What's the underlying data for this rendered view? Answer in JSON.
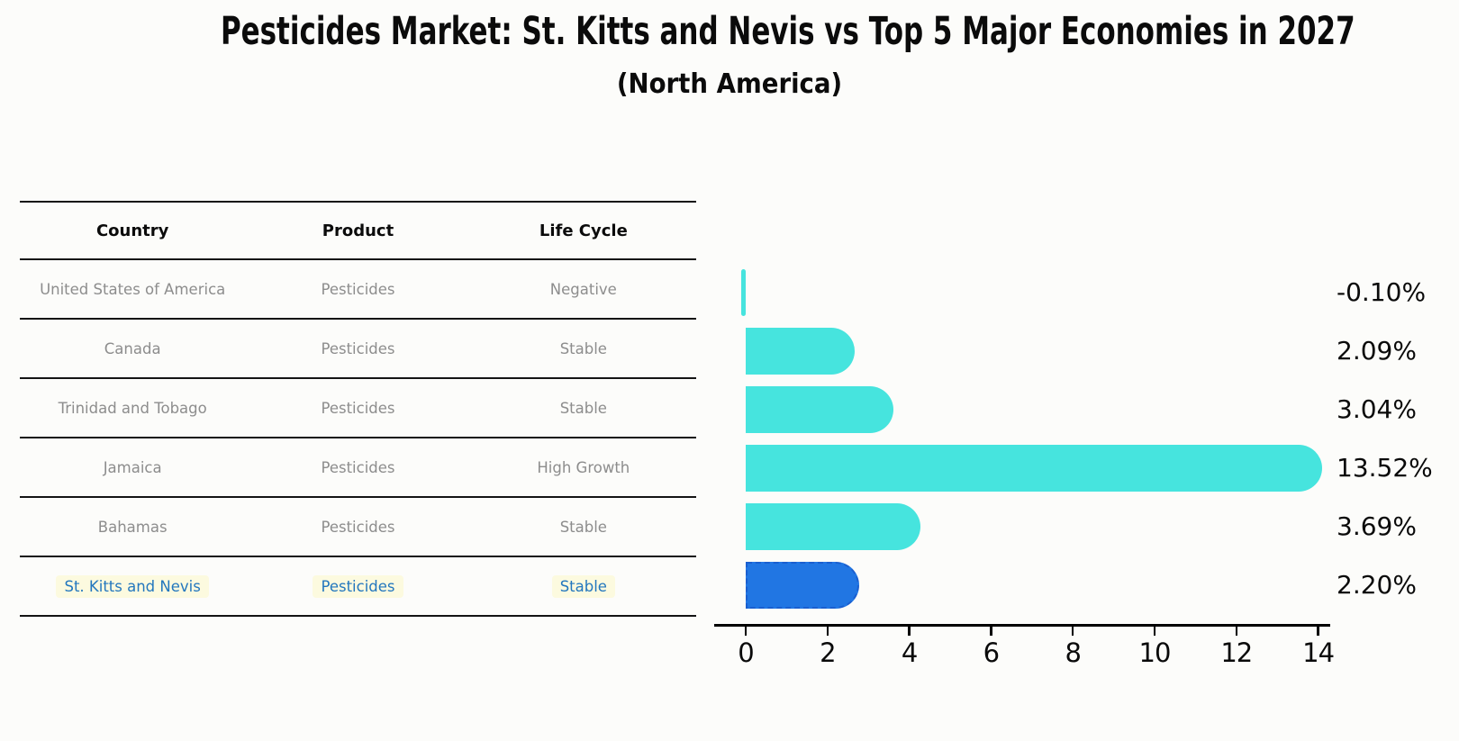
{
  "page": {
    "title": "Pesticides Market: St. Kitts and Nevis vs Top 5 Major Economies in 2027",
    "subtitle": "(North America)"
  },
  "table": {
    "columns": [
      "Country",
      "Product",
      "Life Cycle"
    ],
    "rows": [
      {
        "country": "United States of America",
        "product": "Pesticides",
        "life_cycle": "Negative",
        "highlighted": false
      },
      {
        "country": "Canada",
        "product": "Pesticides",
        "life_cycle": "Stable",
        "highlighted": false
      },
      {
        "country": "Trinidad and Tobago",
        "product": "Pesticides",
        "life_cycle": "Stable",
        "highlighted": false
      },
      {
        "country": "Jamaica",
        "product": "Pesticides",
        "life_cycle": "High Growth",
        "highlighted": false
      },
      {
        "country": "Bahamas",
        "product": "Pesticides",
        "life_cycle": "Stable",
        "highlighted": false
      },
      {
        "country": "St. Kitts and Nevis",
        "product": "Pesticides",
        "life_cycle": "Stable",
        "highlighted": true
      }
    ],
    "row_text_color": "#8d8d8d",
    "highlight_text_color": "#2377be"
  },
  "chart_data": {
    "type": "bar",
    "orientation": "horizontal",
    "categories": [
      "United States of America",
      "Canada",
      "Trinidad and Tobago",
      "Jamaica",
      "Bahamas",
      "St. Kitts and Nevis"
    ],
    "values": [
      -0.1,
      2.09,
      3.04,
      13.52,
      3.69,
      2.2
    ],
    "value_labels": [
      "-0.10%",
      "2.09%",
      "3.04%",
      "13.52%",
      "3.69%",
      "2.20%"
    ],
    "x_ticks": [
      0,
      2,
      4,
      6,
      8,
      10,
      12,
      14
    ],
    "xlim": [
      -0.8,
      14.3
    ],
    "grid": false,
    "legend": false,
    "bar_color": "#46E4DE",
    "highlight_index": 5,
    "highlight_bar_color": "#2176E3",
    "highlight_bar_border_color": "#1a5fd0",
    "axis_color": "#000000"
  }
}
